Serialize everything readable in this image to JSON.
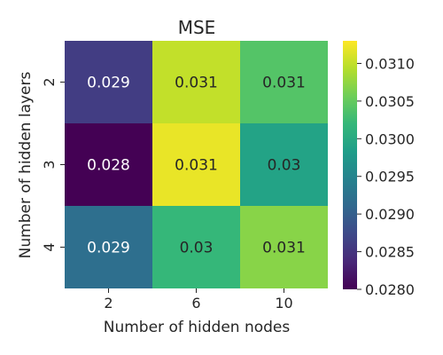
{
  "chart_data": {
    "type": "heatmap",
    "title": "MSE",
    "xlabel": "Number of hidden nodes",
    "ylabel": "Number of hidden layers",
    "x_categories": [
      "2",
      "6",
      "10"
    ],
    "y_categories": [
      "2",
      "3",
      "4"
    ],
    "values": [
      [
        0.0286,
        0.031,
        0.0304
      ],
      [
        0.028,
        0.0312,
        0.0299
      ],
      [
        0.0292,
        0.0302,
        0.0307
      ]
    ],
    "annotations": [
      [
        "0.029",
        "0.031",
        "0.031"
      ],
      [
        "0.028",
        "0.031",
        "0.03"
      ],
      [
        "0.029",
        "0.03",
        "0.031"
      ]
    ],
    "colormap": "viridis",
    "colorbar": {
      "range": [
        0.028,
        0.0313
      ],
      "ticks": [
        0.028,
        0.0285,
        0.029,
        0.0295,
        0.03,
        0.0305,
        0.031
      ],
      "tick_labels": [
        "0.0280",
        "0.0285",
        "0.0290",
        "0.0295",
        "0.0300",
        "0.0305",
        "0.0310"
      ]
    },
    "colors": {
      "viridis_stops": [
        "#440154",
        "#482878",
        "#3e4989",
        "#31688e",
        "#26828e",
        "#1f9e89",
        "#35b779",
        "#6ece58",
        "#b5de2b",
        "#fde725"
      ],
      "text_dark": "#262626",
      "text_light": "#ffffff"
    }
  }
}
